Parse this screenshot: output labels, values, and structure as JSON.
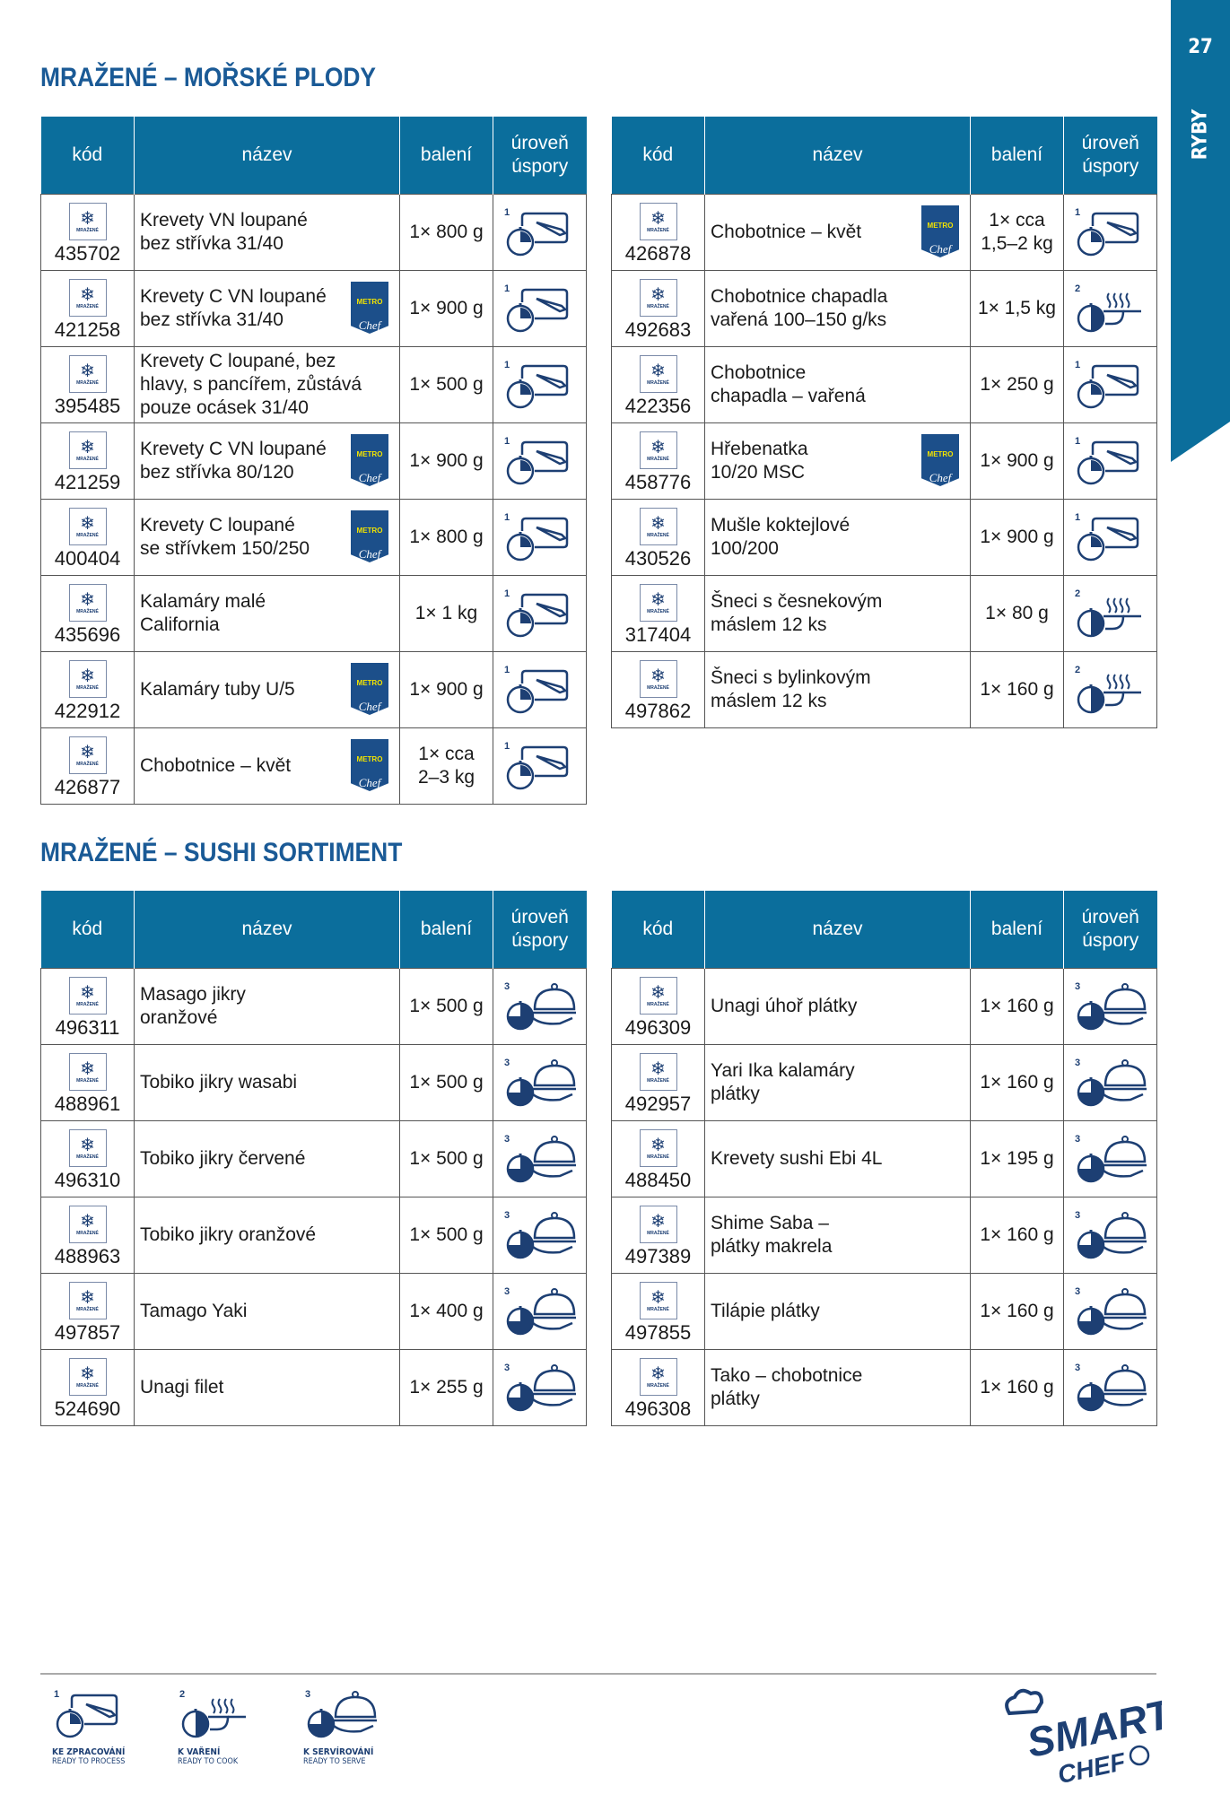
{
  "page": {
    "number": "27",
    "section": "RYBY"
  },
  "colors": {
    "header": "#0b6e9c",
    "title": "#1a5a96",
    "icon": "#1d3f73"
  },
  "headers": {
    "code": "kód",
    "name": "název",
    "pack": "balení",
    "level": "úroveň\núspory"
  },
  "badges": {
    "frozen_label": "MRAŽENÉ",
    "frozen_icon": "snowflake-icon",
    "metro_top": "METRO",
    "metro_bottom": "Chef"
  },
  "sections": [
    {
      "title": "MRAŽENÉ – MOŘSKÉ PLODY",
      "tables": [
        [
          {
            "code": "435702",
            "name": "Krevety VN loupané\nbez střívka 31/40",
            "pack": "1× 800 g",
            "level": 1,
            "metro": false
          },
          {
            "code": "421258",
            "name": "Krevety C VN loupané\nbez střívka 31/40",
            "pack": "1× 900 g",
            "level": 1,
            "metro": true
          },
          {
            "code": "395485",
            "name": "Krevety C loupané, bez\nhlavy, s pancířem, zůstává\npouze ocásek 31/40",
            "pack": "1× 500 g",
            "level": 1,
            "metro": false
          },
          {
            "code": "421259",
            "name": "Krevety C VN loupané\nbez střívka 80/120",
            "pack": "1× 900 g",
            "level": 1,
            "metro": true
          },
          {
            "code": "400404",
            "name": "Krevety C loupané\nse střívkem 150/250",
            "pack": "1× 800 g",
            "level": 1,
            "metro": true
          },
          {
            "code": "435696",
            "name": "Kalamáry malé\nCalifornia",
            "pack": "1× 1 kg",
            "level": 1,
            "metro": false
          },
          {
            "code": "422912",
            "name": "Kalamáry tuby U/5",
            "pack": "1× 900 g",
            "level": 1,
            "metro": true
          },
          {
            "code": "426877",
            "name": "Chobotnice – květ",
            "pack": "1× cca\n2–3 kg",
            "level": 1,
            "metro": true
          }
        ],
        [
          {
            "code": "426878",
            "name": "Chobotnice – květ",
            "pack": "1× cca\n1,5–2 kg",
            "level": 1,
            "metro": true
          },
          {
            "code": "492683",
            "name": "Chobotnice chapadla\nvařená 100–150 g/ks",
            "pack": "1× 1,5 kg",
            "level": 2,
            "metro": false
          },
          {
            "code": "422356",
            "name": "Chobotnice\nchapadla – vařená",
            "pack": "1× 250 g",
            "level": 1,
            "metro": false
          },
          {
            "code": "458776",
            "name": "Hřebenatka\n10/20 MSC",
            "pack": "1× 900 g",
            "level": 1,
            "metro": true
          },
          {
            "code": "430526",
            "name": "Mušle koktejlové\n100/200",
            "pack": "1× 900 g",
            "level": 1,
            "metro": false
          },
          {
            "code": "317404",
            "name": "Šneci s česnekovým\nmáslem 12 ks",
            "pack": "1× 80 g",
            "level": 2,
            "metro": false
          },
          {
            "code": "497862",
            "name": "Šneci s bylinkovým\nmáslem 12 ks",
            "pack": "1× 160 g",
            "level": 2,
            "metro": false
          }
        ]
      ]
    },
    {
      "title": "MRAŽENÉ – SUSHI SORTIMENT",
      "tables": [
        [
          {
            "code": "496311",
            "name": "Masago jikry\noranžové",
            "pack": "1× 500 g",
            "level": 3,
            "metro": false
          },
          {
            "code": "488961",
            "name": "Tobiko jikry wasabi",
            "pack": "1× 500 g",
            "level": 3,
            "metro": false
          },
          {
            "code": "496310",
            "name": "Tobiko jikry červené",
            "pack": "1× 500 g",
            "level": 3,
            "metro": false
          },
          {
            "code": "488963",
            "name": "Tobiko jikry oranžové",
            "pack": "1× 500 g",
            "level": 3,
            "metro": false
          },
          {
            "code": "497857",
            "name": "Tamago Yaki",
            "pack": "1× 400 g",
            "level": 3,
            "metro": false
          },
          {
            "code": "524690",
            "name": "Unagi filet",
            "pack": "1× 255 g",
            "level": 3,
            "metro": false
          }
        ],
        [
          {
            "code": "496309",
            "name": "Unagi úhoř plátky",
            "pack": "1× 160 g",
            "level": 3,
            "metro": false
          },
          {
            "code": "492957",
            "name": "Yari Ika kalamáry\nplátky",
            "pack": "1× 160 g",
            "level": 3,
            "metro": false
          },
          {
            "code": "488450",
            "name": "Krevety sushi Ebi 4L",
            "pack": "1× 195 g",
            "level": 3,
            "metro": false
          },
          {
            "code": "497389",
            "name": "Shime Saba –\nplátky makrela",
            "pack": "1× 160 g",
            "level": 3,
            "metro": false
          },
          {
            "code": "497855",
            "name": "Tilápie plátky",
            "pack": "1× 160 g",
            "level": 3,
            "metro": false
          },
          {
            "code": "496308",
            "name": "Tako – chobotnice\nplátky",
            "pack": "1× 160 g",
            "level": 3,
            "metro": false
          }
        ]
      ]
    }
  ],
  "legend": [
    {
      "level": "1",
      "icon": "ready-to-process-icon",
      "cz": "KE ZPRACOVÁNÍ",
      "en": "READY TO PROCESS"
    },
    {
      "level": "2",
      "icon": "ready-to-cook-icon",
      "cz": "K VAŘENÍ",
      "en": "READY TO COOK"
    },
    {
      "level": "3",
      "icon": "ready-to-serve-icon",
      "cz": "K SERVÍROVÁNÍ",
      "en": "READY TO SERVE"
    }
  ],
  "logo": {
    "line1": "SMART",
    "line2": "CHEF"
  }
}
